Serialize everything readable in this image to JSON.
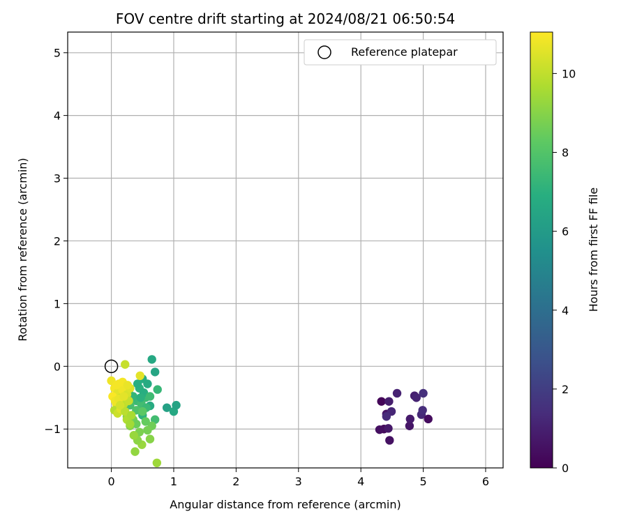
{
  "chart_data": {
    "type": "scatter",
    "title": "FOV centre drift starting at 2024/08/21 06:50:54",
    "xlabel": "Angular distance from reference (arcmin)",
    "ylabel": "Rotation from reference (arcmin)",
    "xlim": [
      -0.7,
      6.28
    ],
    "ylim": [
      -1.62,
      5.33
    ],
    "xticks": [
      0,
      1,
      2,
      3,
      4,
      5,
      6
    ],
    "yticks": [
      -1,
      0,
      1,
      2,
      3,
      4,
      5
    ],
    "xtick_labels": [
      "0",
      "1",
      "2",
      "3",
      "4",
      "5",
      "6"
    ],
    "ytick_labels": [
      "−1",
      "0",
      "1",
      "2",
      "3",
      "4",
      "5"
    ],
    "grid": true,
    "legend": {
      "position": "top-right",
      "entries": [
        {
          "label": "Reference platepar",
          "marker": "open-circle"
        }
      ]
    },
    "reference_point": {
      "x": 0,
      "y": 0
    },
    "colorbar": {
      "label": "Hours from first FF file",
      "colormap": "viridis",
      "range": [
        0,
        11.05
      ],
      "ticks": [
        0,
        2,
        4,
        6,
        8,
        10
      ],
      "tick_labels": [
        "0",
        "2",
        "4",
        "6",
        "8",
        "10"
      ]
    },
    "series": [
      {
        "points": [
          [
            4.33,
            -0.56,
            0.15
          ],
          [
            4.37,
            -1.0,
            0.3
          ],
          [
            4.3,
            -1.01,
            0.45
          ],
          [
            4.41,
            -0.76,
            0.6
          ],
          [
            4.44,
            -0.99,
            0.75
          ],
          [
            4.45,
            -0.56,
            0.9
          ],
          [
            4.58,
            -0.43,
            1.05
          ],
          [
            4.49,
            -0.72,
            1.2
          ],
          [
            4.41,
            -0.8,
            1.35
          ],
          [
            4.46,
            -1.18,
            0.5
          ],
          [
            4.78,
            -0.95,
            0.65
          ],
          [
            4.79,
            -0.84,
            0.8
          ],
          [
            4.86,
            -0.47,
            0.95
          ],
          [
            4.89,
            -0.5,
            1.1
          ],
          [
            4.97,
            -0.77,
            1.25
          ],
          [
            4.99,
            -0.7,
            1.4
          ],
          [
            5.0,
            -0.43,
            1.5
          ],
          [
            5.08,
            -0.84,
            0.35
          ],
          [
            0.65,
            0.11,
            6.6
          ],
          [
            0.7,
            -0.09,
            6.5
          ],
          [
            0.74,
            -0.37,
            7.3
          ],
          [
            0.89,
            -0.66,
            6.3
          ],
          [
            1.0,
            -0.72,
            6.6
          ],
          [
            1.04,
            -0.62,
            6.4
          ],
          [
            0.62,
            -0.63,
            6.7
          ],
          [
            0.7,
            -0.85,
            7.6
          ],
          [
            0.55,
            -0.5,
            7.5
          ],
          [
            0.5,
            -0.2,
            6.8
          ],
          [
            0.45,
            -0.35,
            7.0
          ],
          [
            0.52,
            -0.42,
            6.9
          ],
          [
            0.4,
            -0.55,
            7.4
          ],
          [
            0.58,
            -0.28,
            6.7
          ],
          [
            0.35,
            -0.48,
            7.2
          ],
          [
            0.48,
            -0.6,
            7.6
          ],
          [
            0.28,
            -0.4,
            7.4
          ],
          [
            0.62,
            -0.48,
            7.5
          ],
          [
            0.5,
            -0.78,
            7.1
          ],
          [
            0.4,
            -0.7,
            7.9
          ],
          [
            0.56,
            -0.66,
            7.4
          ],
          [
            0.42,
            -0.28,
            6.9
          ],
          [
            0.3,
            -0.62,
            7.7
          ],
          [
            0.47,
            -0.5,
            7.0
          ],
          [
            0.65,
            -0.95,
            8.6
          ],
          [
            0.62,
            -1.16,
            9.0
          ],
          [
            0.49,
            -1.25,
            9.3
          ],
          [
            0.73,
            -1.54,
            9.4
          ],
          [
            0.38,
            -1.36,
            9.2
          ],
          [
            0.45,
            -1.05,
            8.8
          ],
          [
            0.55,
            -0.88,
            8.4
          ],
          [
            0.35,
            -0.85,
            8.7
          ],
          [
            0.42,
            -1.18,
            9.1
          ],
          [
            0.3,
            -0.95,
            9.0
          ],
          [
            0.58,
            -1.02,
            8.7
          ],
          [
            0.4,
            -0.92,
            8.5
          ],
          [
            0.5,
            -0.72,
            8.2
          ],
          [
            0.36,
            -1.1,
            9.3
          ],
          [
            0.25,
            -0.8,
            8.9
          ],
          [
            0.22,
            0.03,
            10.1
          ],
          [
            0.46,
            -0.15,
            10.6
          ],
          [
            0.0,
            -0.23,
            10.8
          ],
          [
            0.05,
            -0.35,
            10.9
          ],
          [
            0.1,
            -0.42,
            10.6
          ],
          [
            0.15,
            -0.5,
            10.3
          ],
          [
            0.02,
            -0.48,
            11.0
          ],
          [
            0.08,
            -0.6,
            10.7
          ],
          [
            0.12,
            -0.28,
            10.9
          ],
          [
            0.18,
            -0.38,
            10.8
          ],
          [
            0.25,
            -0.45,
            10.4
          ],
          [
            0.2,
            -0.6,
            10.0
          ],
          [
            0.05,
            -0.7,
            9.8
          ],
          [
            0.1,
            -0.75,
            10.2
          ],
          [
            0.15,
            -0.68,
            10.5
          ],
          [
            0.22,
            -0.72,
            9.9
          ],
          [
            0.28,
            -0.55,
            10.1
          ],
          [
            0.3,
            -0.35,
            10.5
          ],
          [
            0.06,
            -0.55,
            10.8
          ],
          [
            0.18,
            -0.25,
            10.9
          ],
          [
            0.25,
            -0.85,
            9.7
          ],
          [
            0.32,
            -0.78,
            9.6
          ],
          [
            0.12,
            -0.52,
            10.7
          ],
          [
            0.08,
            -0.3,
            10.9
          ],
          [
            0.2,
            -0.48,
            10.6
          ],
          [
            0.3,
            -0.92,
            9.5
          ],
          [
            0.14,
            -0.62,
            10.3
          ],
          [
            0.26,
            -0.3,
            10.7
          ]
        ]
      }
    ]
  }
}
